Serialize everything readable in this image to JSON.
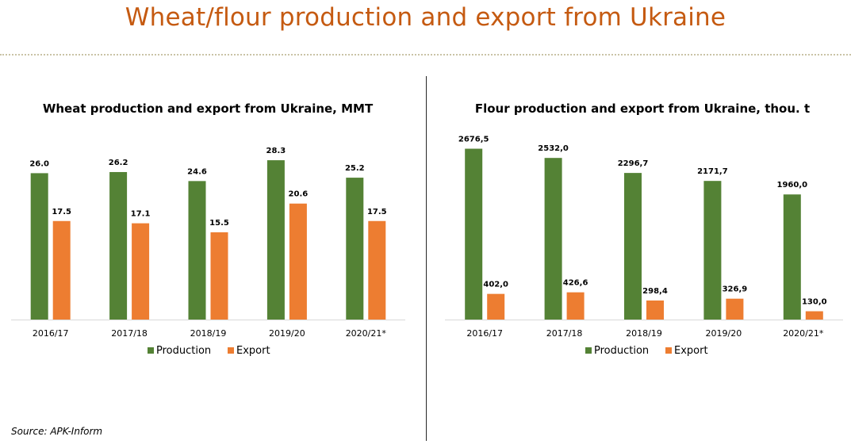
{
  "page": {
    "title": "Wheat/flour production and export from Ukraine",
    "source": "Source: APK-Inform"
  },
  "colors": {
    "production": "#548235",
    "export": "#ed7d31",
    "title": "#c55a11"
  },
  "chart_data": [
    {
      "type": "bar",
      "title": "Wheat production and export from Ukraine, MMT",
      "categories": [
        "2016/17",
        "2017/18",
        "2018/19",
        "2019/20",
        "2020/21*"
      ],
      "series": [
        {
          "name": "Production",
          "values": [
            26.0,
            26.2,
            24.6,
            28.3,
            25.2
          ],
          "labels": [
            "26.0",
            "26.2",
            "24.6",
            "28.3",
            "25.2"
          ]
        },
        {
          "name": "Export",
          "values": [
            17.5,
            17.1,
            15.5,
            20.6,
            17.5
          ],
          "labels": [
            "17.5",
            "17.1",
            "15.5",
            "20.6",
            "17.5"
          ]
        }
      ],
      "xlabel": "",
      "ylabel": "",
      "ylim": [
        0,
        30
      ],
      "grid": false,
      "legend": "bottom"
    },
    {
      "type": "bar",
      "title": "Flour production and export from Ukraine, thou. t",
      "categories": [
        "2016/17",
        "2017/18",
        "2018/19",
        "2019/20",
        "2020/21*"
      ],
      "series": [
        {
          "name": "Production",
          "values": [
            2676.5,
            2532.0,
            2296.7,
            2171.7,
            1960.0
          ],
          "labels": [
            "2676,5",
            "2532,0",
            "2296,7",
            "2171,7",
            "1960,0"
          ]
        },
        {
          "name": "Export",
          "values": [
            402.0,
            426.6,
            298.4,
            326.9,
            130.0
          ],
          "labels": [
            "402,0",
            "426,6",
            "298,4",
            "326,9",
            "130,0"
          ]
        }
      ],
      "xlabel": "",
      "ylabel": "",
      "ylim": [
        0,
        2700
      ],
      "grid": false,
      "legend": "bottom"
    }
  ]
}
